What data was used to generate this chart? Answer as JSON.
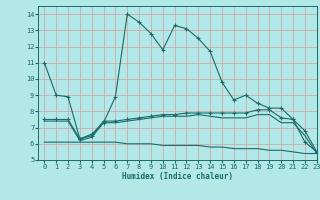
{
  "xlabel": "Humidex (Indice chaleur)",
  "xlim": [
    -0.5,
    23
  ],
  "ylim": [
    5,
    14.5
  ],
  "yticks": [
    5,
    6,
    7,
    8,
    9,
    10,
    11,
    12,
    13,
    14
  ],
  "xticks": [
    0,
    1,
    2,
    3,
    4,
    5,
    6,
    7,
    8,
    9,
    10,
    11,
    12,
    13,
    14,
    15,
    16,
    17,
    18,
    19,
    20,
    21,
    22,
    23
  ],
  "bg_color": "#b2e8e8",
  "line_color": "#1a6b6b",
  "grid_color": "#d4a0a0",
  "line1_x": [
    0,
    1,
    2,
    3,
    4,
    5,
    6,
    7,
    8,
    9,
    10,
    11,
    12,
    13,
    14,
    15,
    16,
    17,
    18,
    19,
    20,
    21,
    22,
    23
  ],
  "line1_y": [
    11,
    9,
    8.9,
    6.3,
    6.6,
    7.3,
    8.9,
    14.0,
    13.5,
    12.8,
    11.8,
    13.3,
    13.1,
    12.5,
    11.7,
    9.8,
    8.7,
    9.0,
    8.5,
    8.2,
    8.2,
    7.5,
    6.1,
    5.5
  ],
  "line2_x": [
    0,
    1,
    2,
    3,
    4,
    5,
    6,
    7,
    8,
    9,
    10,
    11,
    12,
    13,
    14,
    15,
    16,
    17,
    18,
    19,
    20,
    21,
    22,
    23
  ],
  "line2_y": [
    7.5,
    7.5,
    7.5,
    6.3,
    6.5,
    7.4,
    7.4,
    7.5,
    7.6,
    7.7,
    7.8,
    7.8,
    7.9,
    7.9,
    7.9,
    7.9,
    7.9,
    7.9,
    8.1,
    8.1,
    7.6,
    7.5,
    6.8,
    5.5
  ],
  "line3_x": [
    0,
    1,
    2,
    3,
    4,
    5,
    6,
    7,
    8,
    9,
    10,
    11,
    12,
    13,
    14,
    15,
    16,
    17,
    18,
    19,
    20,
    21,
    22,
    23
  ],
  "line3_y": [
    7.4,
    7.4,
    7.4,
    6.2,
    6.4,
    7.3,
    7.3,
    7.4,
    7.5,
    7.6,
    7.7,
    7.7,
    7.7,
    7.8,
    7.7,
    7.6,
    7.6,
    7.6,
    7.8,
    7.8,
    7.3,
    7.3,
    6.5,
    5.4
  ],
  "line4_x": [
    0,
    1,
    2,
    3,
    4,
    5,
    6,
    7,
    8,
    9,
    10,
    11,
    12,
    13,
    14,
    15,
    16,
    17,
    18,
    19,
    20,
    21,
    22,
    23
  ],
  "line4_y": [
    6.1,
    6.1,
    6.1,
    6.1,
    6.1,
    6.1,
    6.1,
    6.0,
    6.0,
    6.0,
    5.9,
    5.9,
    5.9,
    5.9,
    5.8,
    5.8,
    5.7,
    5.7,
    5.7,
    5.6,
    5.6,
    5.5,
    5.4,
    5.4
  ]
}
